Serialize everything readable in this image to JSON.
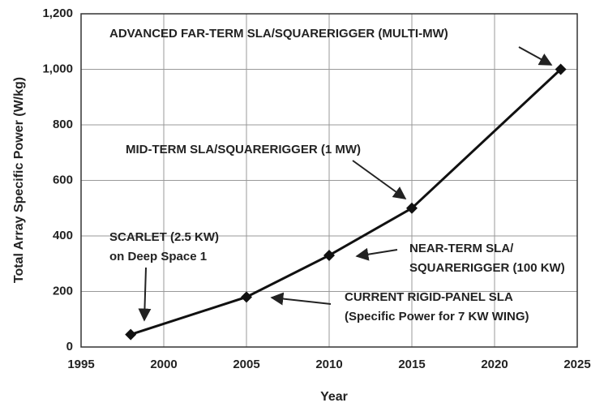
{
  "chart_data": {
    "type": "line",
    "x_label": "Year",
    "y_label": "Total Array Specific Power (W/kg)",
    "x": [
      1998,
      2005,
      2010,
      2015,
      2024
    ],
    "series": [
      {
        "name": "Total Array Specific Power",
        "color": "#111111",
        "values": [
          45,
          180,
          330,
          500,
          1000
        ]
      }
    ],
    "xlim": [
      1995,
      2025
    ],
    "xticks": [
      1995,
      2000,
      2005,
      2010,
      2015,
      2020,
      2025
    ],
    "ylim": [
      0,
      1200
    ],
    "yticks": [
      0,
      200,
      400,
      600,
      800,
      {
        "value": 1000,
        "label": "1,000"
      },
      {
        "value": 1200,
        "label": "1,200"
      }
    ],
    "grid": true,
    "annotations": [
      [
        "ADVANCED FAR-TERM SLA/SQUARERIGGER (MULTI-MW)"
      ],
      [
        "MID-TERM SLA/SQUARERIGGER (1 MW)"
      ],
      [
        "NEAR-TERM SLA/",
        "SQUARERIGGER (100 KW)"
      ],
      [
        "CURRENT RIGID-PANEL SLA",
        "(Specific Power for 7 KW WING)"
      ],
      [
        "SCARLET (2.5 KW)",
        "on Deep Space 1"
      ]
    ]
  }
}
